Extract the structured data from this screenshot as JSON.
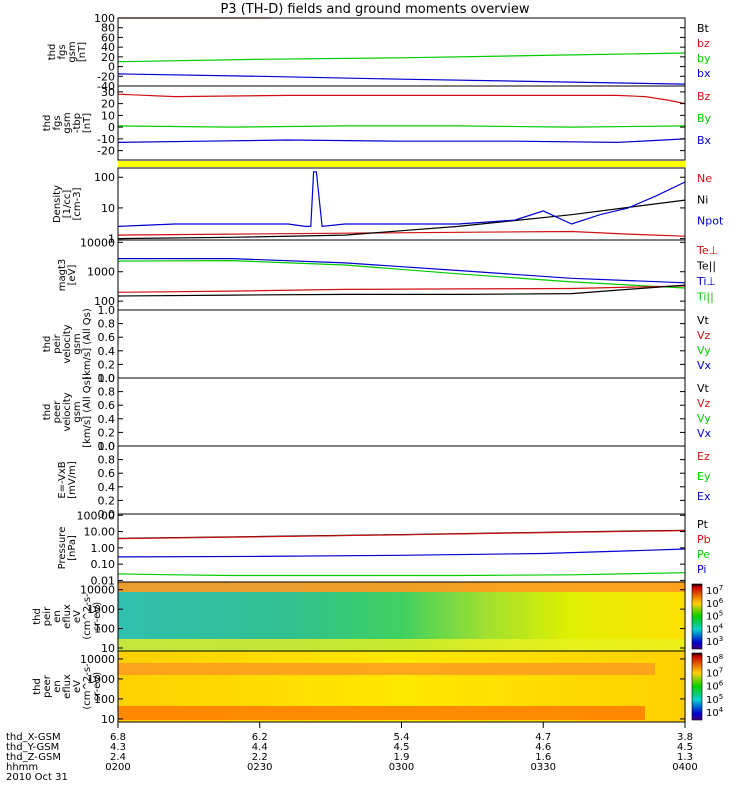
{
  "title": "P3 (TH-D) fields and ground moments overview",
  "colors": {
    "black": "#000000",
    "red": "#d01010",
    "green": "#00cc00",
    "blue": "#0000d0",
    "yellow": "#ffff00"
  },
  "chart_data": [
    {
      "type": "line",
      "id": "fgs-gsm",
      "ylabel": [
        "thd",
        "fgs",
        "gsm",
        "[nT]"
      ],
      "ylim": [
        -40,
        100
      ],
      "yticks": [
        "100",
        "80",
        "60",
        "40",
        "20",
        "0",
        "-20",
        "-40"
      ],
      "legend": [
        {
          "label": "Bt",
          "color": "black"
        },
        {
          "label": "bz",
          "color": "red"
        },
        {
          "label": "by",
          "color": "green"
        },
        {
          "label": "bx",
          "color": "blue"
        }
      ],
      "series": [
        {
          "name": "bz",
          "color": "red",
          "x": [
            0,
            0.27
          ],
          "y": [
            100,
            100
          ]
        },
        {
          "name": "by",
          "color": "green",
          "x": [
            0,
            0.25,
            0.5,
            0.75,
            1
          ],
          "y": [
            10,
            15,
            18,
            23,
            28
          ]
        },
        {
          "name": "bx",
          "color": "blue",
          "x": [
            0,
            0.25,
            0.5,
            0.75,
            1
          ],
          "y": [
            -15,
            -20,
            -26,
            -31,
            -36
          ]
        }
      ]
    },
    {
      "type": "line",
      "id": "fgs-gse",
      "ylabel": [
        "thd",
        "fgs",
        "gsm",
        "-tbp",
        "[nT]"
      ],
      "ylim": [
        -28,
        35
      ],
      "yticks": [
        "30",
        "20",
        "10",
        "0",
        "-10",
        "-20"
      ],
      "legend": [
        {
          "label": "Bz",
          "color": "red"
        },
        {
          "label": "By",
          "color": "green"
        },
        {
          "label": "Bx",
          "color": "blue"
        }
      ],
      "series": [
        {
          "name": "Bz",
          "color": "red",
          "x": [
            0,
            0.1,
            0.3,
            0.5,
            0.7,
            0.88,
            0.93,
            0.97,
            1
          ],
          "y": [
            28,
            26,
            27,
            27,
            27,
            27,
            26,
            23,
            20
          ]
        },
        {
          "name": "By",
          "color": "green",
          "x": [
            0,
            0.2,
            0.4,
            0.6,
            0.8,
            1
          ],
          "y": [
            1,
            0,
            1,
            1,
            0,
            1
          ]
        },
        {
          "name": "Bx",
          "color": "blue",
          "x": [
            0,
            0.15,
            0.3,
            0.5,
            0.7,
            0.88,
            1
          ],
          "y": [
            -13,
            -12,
            -11,
            -12,
            -12,
            -13,
            -10
          ]
        }
      ]
    },
    {
      "type": "bar",
      "id": "mode-bar",
      "color": "yellow"
    },
    {
      "type": "line",
      "id": "density",
      "yscale": "log",
      "ylabel": [
        "Density",
        "[1/cc]",
        "[cm-3]"
      ],
      "ylim": [
        0.9,
        200
      ],
      "yticks": [
        "100",
        "10",
        "1"
      ],
      "ytick_values": [
        100,
        10,
        1
      ],
      "legend": [
        {
          "label": "Ne",
          "color": "red"
        },
        {
          "label": "Ni",
          "color": "black"
        },
        {
          "label": "Npot",
          "color": "blue"
        }
      ],
      "series": [
        {
          "name": "Ne",
          "color": "red",
          "x": [
            0,
            0.2,
            0.4,
            0.6,
            0.8,
            0.9,
            1
          ],
          "y": [
            1.3,
            1.4,
            1.5,
            1.6,
            1.7,
            1.4,
            1.2
          ]
        },
        {
          "name": "Ni",
          "color": "black",
          "x": [
            0,
            0.2,
            0.4,
            0.6,
            0.8,
            1
          ],
          "y": [
            1.0,
            1.1,
            1.3,
            2.5,
            6,
            18
          ]
        },
        {
          "name": "Npot",
          "color": "blue",
          "x": [
            0,
            0.1,
            0.2,
            0.3,
            0.33,
            0.34,
            0.345,
            0.35,
            0.36,
            0.4,
            0.5,
            0.6,
            0.7,
            0.75,
            0.8,
            0.85,
            0.9,
            0.95,
            1
          ],
          "y": [
            2.5,
            3,
            3,
            3,
            2.5,
            2.5,
            150,
            150,
            2.5,
            3,
            3,
            3,
            4,
            8,
            3,
            6,
            10,
            25,
            70
          ]
        }
      ]
    },
    {
      "type": "line",
      "id": "temperature",
      "yscale": "log",
      "ylabel": [
        "magt3",
        "[eV]"
      ],
      "ylim": [
        50,
        12000
      ],
      "yticks": [
        "10000",
        "1000",
        "100"
      ],
      "ytick_values": [
        10000,
        1000,
        100
      ],
      "legend": [
        {
          "label": "Te⊥",
          "color": "red"
        },
        {
          "label": "Te||",
          "color": "black"
        },
        {
          "label": "Ti⊥",
          "color": "blue"
        },
        {
          "label": "Ti||",
          "color": "green"
        }
      ],
      "series": [
        {
          "name": "Ti⊥",
          "color": "blue",
          "x": [
            0,
            0.2,
            0.4,
            0.6,
            0.8,
            1
          ],
          "y": [
            2800,
            2800,
            2000,
            1100,
            600,
            420
          ]
        },
        {
          "name": "Ti||",
          "color": "green",
          "x": [
            0,
            0.2,
            0.4,
            0.6,
            0.8,
            1
          ],
          "y": [
            2300,
            2400,
            1700,
            850,
            450,
            280
          ]
        },
        {
          "name": "Te⊥",
          "color": "red",
          "x": [
            0,
            0.2,
            0.4,
            0.6,
            0.8,
            1
          ],
          "y": [
            200,
            220,
            250,
            260,
            270,
            330
          ]
        },
        {
          "name": "Te||",
          "color": "black",
          "x": [
            0,
            0.2,
            0.4,
            0.6,
            0.8,
            1
          ],
          "y": [
            150,
            160,
            170,
            170,
            180,
            350
          ]
        }
      ]
    },
    {
      "type": "line",
      "id": "peir-velocity",
      "ylabel": [
        "thd",
        "peir",
        "velocity",
        "gsm",
        "[km/s] (All Qs)"
      ],
      "ylim": [
        0,
        1
      ],
      "yticks": [
        "1.0",
        "0.8",
        "0.6",
        "0.4",
        "0.2",
        "0.0"
      ],
      "legend": [
        {
          "label": "Vt",
          "color": "black"
        },
        {
          "label": "Vz",
          "color": "red"
        },
        {
          "label": "Vy",
          "color": "green"
        },
        {
          "label": "Vx",
          "color": "blue"
        }
      ],
      "series": []
    },
    {
      "type": "line",
      "id": "peer-velocity",
      "ylabel": [
        "thd",
        "peer",
        "velocity",
        "gsm",
        "[km/s] (All Qs)"
      ],
      "ylim": [
        0,
        1
      ],
      "yticks": [
        "1.0",
        "0.8",
        "0.6",
        "0.4",
        "0.2",
        "0.0"
      ],
      "legend": [
        {
          "label": "Vt",
          "color": "black"
        },
        {
          "label": "Vz",
          "color": "red"
        },
        {
          "label": "Vy",
          "color": "green"
        },
        {
          "label": "Vx",
          "color": "blue"
        }
      ],
      "series": []
    },
    {
      "type": "line",
      "id": "efield",
      "ylabel": [
        "E=-VxB",
        "[mV/m]"
      ],
      "ylim": [
        0,
        1
      ],
      "yticks": [
        "1.0",
        "0.8",
        "0.6",
        "0.4",
        "0.2",
        "0.0"
      ],
      "legend": [
        {
          "label": "Ez",
          "color": "red"
        },
        {
          "label": "Ey",
          "color": "green"
        },
        {
          "label": "Ex",
          "color": "blue"
        }
      ],
      "series": []
    },
    {
      "type": "line",
      "id": "pressure",
      "yscale": "log",
      "ylabel": [
        "Pressure",
        "[nPa]"
      ],
      "ylim": [
        0.008,
        120
      ],
      "yticks": [
        "100.00",
        "10.00",
        "1.00",
        "0.10",
        "0.01"
      ],
      "ytick_values": [
        100,
        10,
        1,
        0.1,
        0.01
      ],
      "legend": [
        {
          "label": "Pt",
          "color": "black"
        },
        {
          "label": "Pb",
          "color": "red"
        },
        {
          "label": "Pe",
          "color": "green"
        },
        {
          "label": "Pi",
          "color": "blue"
        }
      ],
      "series": [
        {
          "name": "Pt",
          "color": "black",
          "x": [
            0,
            0.25,
            0.5,
            0.75,
            1
          ],
          "y": [
            3.8,
            5,
            6.5,
            9,
            12
          ]
        },
        {
          "name": "Pb",
          "color": "red",
          "x": [
            0,
            0.25,
            0.5,
            0.75,
            1
          ],
          "y": [
            3.7,
            4.8,
            6.3,
            8.7,
            11.5
          ]
        },
        {
          "name": "Pi",
          "color": "blue",
          "x": [
            0,
            0.25,
            0.5,
            0.75,
            0.9,
            1
          ],
          "y": [
            0.28,
            0.3,
            0.35,
            0.45,
            0.65,
            0.85
          ]
        },
        {
          "name": "Pe",
          "color": "green",
          "x": [
            0,
            0.1,
            0.2,
            0.4,
            0.6,
            0.8,
            1
          ],
          "y": [
            0.025,
            0.022,
            0.02,
            0.02,
            0.02,
            0.022,
            0.03
          ]
        }
      ]
    },
    {
      "type": "heatmap",
      "id": "peir-spectrogram",
      "yscale": "log",
      "ylabel": [
        "thd",
        "peir",
        "en",
        "eflux",
        "eV",
        "(cm^2-s-",
        "sr-eV)"
      ],
      "ylim": [
        7,
        25000
      ],
      "yticks": [
        "10000",
        "1000",
        "100",
        "10"
      ],
      "ytick_values": [
        10000,
        1000,
        100,
        10
      ],
      "colorbar": [
        "10^7",
        "10^6",
        "10^5",
        "10^4",
        "10^3"
      ]
    },
    {
      "type": "heatmap",
      "id": "peer-spectrogram",
      "yscale": "log",
      "ylabel": [
        "thd",
        "peer",
        "en",
        "eflux",
        "eV",
        "(cm^2-s-",
        "sr-eV)"
      ],
      "ylim": [
        7,
        25000
      ],
      "yticks": [
        "10000",
        "1000",
        "100",
        "10"
      ],
      "ytick_values": [
        10000,
        1000,
        100,
        10
      ],
      "colorbar": [
        "10^8",
        "10^7",
        "10^6",
        "10^5",
        "10^4"
      ]
    }
  ],
  "x_axis": {
    "rows": [
      {
        "label": "thd_X-GSM",
        "values": [
          "6.8",
          "6.2",
          "5.4",
          "4.7",
          "3.8"
        ]
      },
      {
        "label": "thd_Y-GSM",
        "values": [
          "4.3",
          "4.4",
          "4.5",
          "4.6",
          "4.5"
        ]
      },
      {
        "label": "thd_Z-GSM",
        "values": [
          "2.4",
          "2.2",
          "1.9",
          "1.6",
          "1.3"
        ]
      },
      {
        "label": "hhmm",
        "values": [
          "0200",
          "0230",
          "0300",
          "0330",
          "0400"
        ]
      }
    ],
    "date": "2010 Oct 31"
  }
}
